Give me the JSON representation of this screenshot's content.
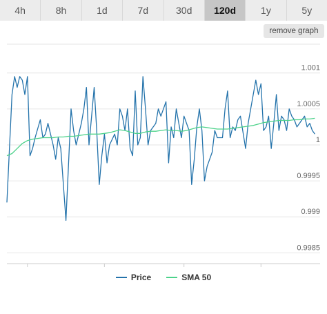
{
  "tabs": [
    {
      "label": "4h",
      "active": false
    },
    {
      "label": "8h",
      "active": false
    },
    {
      "label": "1d",
      "active": false
    },
    {
      "label": "7d",
      "active": false
    },
    {
      "label": "30d",
      "active": false
    },
    {
      "label": "120d",
      "active": true
    },
    {
      "label": "1y",
      "active": false
    },
    {
      "label": "5y",
      "active": false
    }
  ],
  "remove_graph_label": "remove graph",
  "colors": {
    "price": "#2473ab",
    "sma": "#4cd28a",
    "grid": "#e6e6e6",
    "axis": "#cccccc",
    "text": "#666666"
  },
  "chart_data": {
    "type": "line",
    "x_start": "2025-08-24",
    "ylim": [
      0.99835,
      1.0014
    ],
    "yticks": [
      0.9985,
      0.999,
      0.9995,
      1,
      1.0005,
      1.001
    ],
    "ytick_labels": [
      "0.9985",
      "0.999",
      "0.9995",
      "1",
      "1.0005",
      "1.001"
    ],
    "xtick_labels": [
      "Sep '25",
      "Oct '25",
      "Nov '25",
      "Dec '25"
    ],
    "xtick_dates": [
      "2025-09-01",
      "2025-10-01",
      "2025-11-01",
      "2025-12-01"
    ],
    "grid": true,
    "legend_position": "bottom",
    "series": [
      {
        "name": "Price",
        "x": [
          "2025-08-24",
          "2025-08-26",
          "2025-08-27",
          "2025-08-28",
          "2025-08-29",
          "2025-08-30",
          "2025-08-31",
          "2025-09-01",
          "2025-09-02",
          "2025-09-03",
          "2025-09-04",
          "2025-09-06",
          "2025-09-07",
          "2025-09-08",
          "2025-09-09",
          "2025-09-11",
          "2025-09-12",
          "2025-09-13",
          "2025-09-14",
          "2025-09-16",
          "2025-09-18",
          "2025-09-19",
          "2025-09-20",
          "2025-09-22",
          "2025-09-23",
          "2025-09-24",
          "2025-09-25",
          "2025-09-26",
          "2025-09-27",
          "2025-09-28",
          "2025-09-29",
          "2025-09-30",
          "2025-10-01",
          "2025-10-02",
          "2025-10-03",
          "2025-10-05",
          "2025-10-06",
          "2025-10-07",
          "2025-10-08",
          "2025-10-09",
          "2025-10-10",
          "2025-10-11",
          "2025-10-12",
          "2025-10-13",
          "2025-10-14",
          "2025-10-15",
          "2025-10-16",
          "2025-10-17",
          "2025-10-18",
          "2025-10-19",
          "2025-10-21",
          "2025-10-22",
          "2025-10-23",
          "2025-10-24",
          "2025-10-25",
          "2025-10-26",
          "2025-10-27",
          "2025-10-28",
          "2025-10-29",
          "2025-10-30",
          "2025-10-31",
          "2025-11-01",
          "2025-11-03",
          "2025-11-04",
          "2025-11-05",
          "2025-11-06",
          "2025-11-07",
          "2025-11-08",
          "2025-11-09",
          "2025-11-10",
          "2025-11-11",
          "2025-11-12",
          "2025-11-13",
          "2025-11-14",
          "2025-11-16",
          "2025-11-17",
          "2025-11-18",
          "2025-11-19",
          "2025-11-20",
          "2025-11-21",
          "2025-11-22",
          "2025-11-23",
          "2025-11-25",
          "2025-11-26",
          "2025-11-27",
          "2025-11-29",
          "2025-11-30",
          "2025-12-01",
          "2025-12-02",
          "2025-12-03",
          "2025-12-04",
          "2025-12-05",
          "2025-12-06",
          "2025-12-07",
          "2025-12-08",
          "2025-12-09",
          "2025-12-10",
          "2025-12-11",
          "2025-12-12",
          "2025-12-13",
          "2025-12-14",
          "2025-12-15",
          "2025-12-16",
          "2025-12-17",
          "2025-12-18",
          "2025-12-19",
          "2025-12-20",
          "2025-12-21",
          "2025-12-22"
        ],
        "y": [
          0.9992,
          1.0007,
          1.00095,
          1.0008,
          1.00095,
          1.0009,
          1.0007,
          1.00095,
          0.99985,
          0.99995,
          1.0001,
          1.00035,
          1.0001,
          1.00015,
          1.0003,
          1.0,
          0.9998,
          1.0001,
          0.99995,
          0.99895,
          1.0005,
          1.0002,
          1.0,
          1.0003,
          1.0005,
          1.0008,
          1.0,
          1.0004,
          1.0008,
          1.0002,
          0.99945,
          0.99985,
          1.00015,
          0.99975,
          1.0,
          1.00015,
          1.0,
          1.0005,
          1.0004,
          1.0002,
          1.0005,
          0.99995,
          0.99985,
          1.00075,
          1.0,
          1.0001,
          1.00095,
          1.0005,
          1.0,
          1.0002,
          1.0003,
          1.0005,
          1.0004,
          1.0005,
          1.0006,
          0.99975,
          1.00025,
          1.0001,
          1.0005,
          1.0003,
          1.0001,
          1.0004,
          1.0002,
          0.99945,
          0.9998,
          1.00025,
          1.0005,
          1.0002,
          0.9995,
          0.9997,
          0.9998,
          0.9999,
          1.0002,
          1.0001,
          1.0001,
          1.0005,
          1.00075,
          1.0001,
          1.00025,
          1.0002,
          1.00035,
          1.0004,
          0.99995,
          1.0003,
          1.0005,
          1.0009,
          1.0007,
          1.00085,
          1.0002,
          1.00025,
          1.0004,
          0.99995,
          1.0003,
          1.0007,
          1.0002,
          1.0004,
          1.00035,
          1.0002,
          1.0005,
          1.0004,
          1.00035,
          1.00025,
          1.0003,
          1.00035,
          1.0004,
          1.00025,
          1.0003,
          1.0002,
          1.00015
        ]
      },
      {
        "name": "SMA 50",
        "x": [
          "2025-08-24",
          "2025-08-26",
          "2025-08-28",
          "2025-08-30",
          "2025-09-01",
          "2025-09-03",
          "2025-09-05",
          "2025-09-07",
          "2025-09-09",
          "2025-09-11",
          "2025-09-13",
          "2025-09-15",
          "2025-09-17",
          "2025-09-19",
          "2025-09-21",
          "2025-09-23",
          "2025-09-25",
          "2025-09-27",
          "2025-09-29",
          "2025-10-01",
          "2025-10-03",
          "2025-10-05",
          "2025-10-07",
          "2025-10-09",
          "2025-10-11",
          "2025-10-13",
          "2025-10-15",
          "2025-10-17",
          "2025-10-19",
          "2025-10-21",
          "2025-10-23",
          "2025-10-25",
          "2025-10-27",
          "2025-10-29",
          "2025-10-31",
          "2025-11-02",
          "2025-11-04",
          "2025-11-06",
          "2025-11-08",
          "2025-11-10",
          "2025-11-12",
          "2025-11-14",
          "2025-11-16",
          "2025-11-18",
          "2025-11-20",
          "2025-11-22",
          "2025-11-24",
          "2025-11-26",
          "2025-11-28",
          "2025-11-30",
          "2025-12-02",
          "2025-12-04",
          "2025-12-06",
          "2025-12-08",
          "2025-12-10",
          "2025-12-12",
          "2025-12-14",
          "2025-12-16",
          "2025-12-18",
          "2025-12-20",
          "2025-12-22"
        ],
        "y": [
          0.99985,
          0.99988,
          0.99995,
          1.00002,
          1.00006,
          1.00008,
          1.00009,
          1.0001,
          1.0001,
          1.0001,
          1.00011,
          1.00011,
          1.00012,
          1.00012,
          1.00013,
          1.00014,
          1.00015,
          1.00015,
          1.00015,
          1.00016,
          1.00017,
          1.00019,
          1.00021,
          1.0002,
          1.00018,
          1.00016,
          1.00016,
          1.00018,
          1.00019,
          1.00019,
          1.0002,
          1.00021,
          1.0002,
          1.0002,
          1.00019,
          1.0002,
          1.00022,
          1.00024,
          1.00025,
          1.00024,
          1.00023,
          1.00022,
          1.00022,
          1.00022,
          1.00023,
          1.00024,
          1.00025,
          1.00026,
          1.00027,
          1.00029,
          1.00031,
          1.00032,
          1.00033,
          1.00034,
          1.00034,
          1.00034,
          1.00035,
          1.00035,
          1.00036,
          1.00036,
          1.00037
        ]
      }
    ]
  }
}
